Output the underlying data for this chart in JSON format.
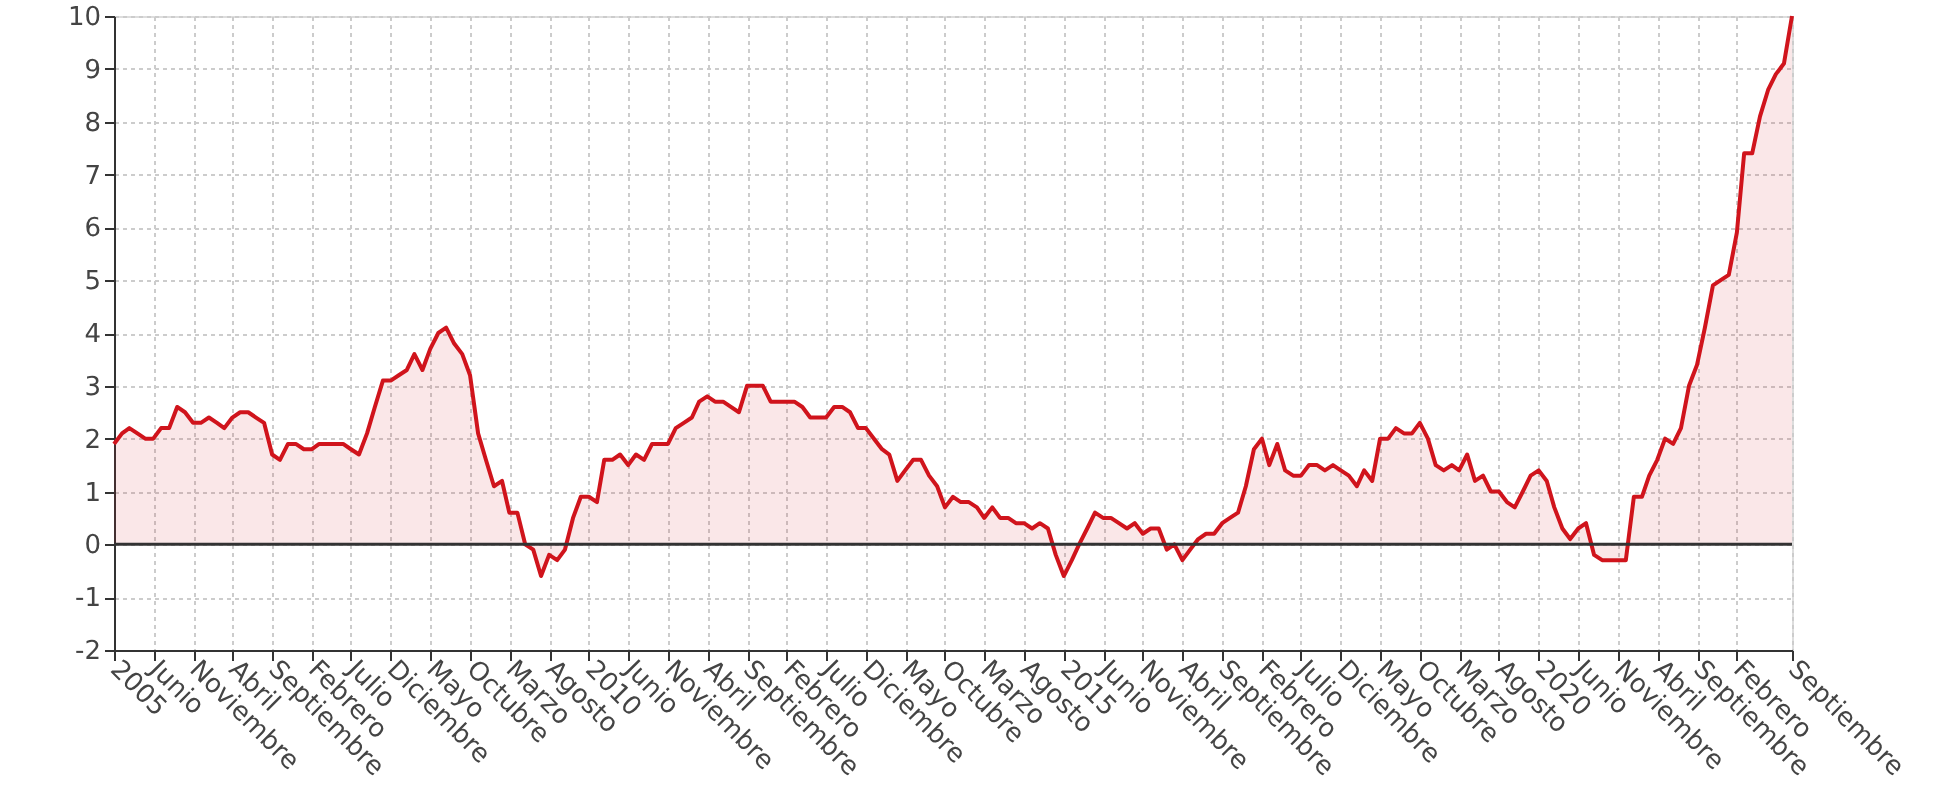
{
  "chart_data": {
    "type": "area",
    "x": [
      "2005-01",
      "2005-02",
      "2005-03",
      "2005-04",
      "2005-05",
      "2005-06",
      "2005-07",
      "2005-08",
      "2005-09",
      "2005-10",
      "2005-11",
      "2005-12",
      "2006-01",
      "2006-02",
      "2006-03",
      "2006-04",
      "2006-05",
      "2006-06",
      "2006-07",
      "2006-08",
      "2006-09",
      "2006-10",
      "2006-11",
      "2006-12",
      "2007-01",
      "2007-02",
      "2007-03",
      "2007-04",
      "2007-05",
      "2007-06",
      "2007-07",
      "2007-08",
      "2007-09",
      "2007-10",
      "2007-11",
      "2007-12",
      "2008-01",
      "2008-02",
      "2008-03",
      "2008-04",
      "2008-05",
      "2008-06",
      "2008-07",
      "2008-08",
      "2008-09",
      "2008-10",
      "2008-11",
      "2008-12",
      "2009-01",
      "2009-02",
      "2009-03",
      "2009-04",
      "2009-05",
      "2009-06",
      "2009-07",
      "2009-08",
      "2009-09",
      "2009-10",
      "2009-11",
      "2009-12",
      "2010-01",
      "2010-02",
      "2010-03",
      "2010-04",
      "2010-05",
      "2010-06",
      "2010-07",
      "2010-08",
      "2010-09",
      "2010-10",
      "2010-11",
      "2010-12",
      "2011-01",
      "2011-02",
      "2011-03",
      "2011-04",
      "2011-05",
      "2011-06",
      "2011-07",
      "2011-08",
      "2011-09",
      "2011-10",
      "2011-11",
      "2011-12",
      "2012-01",
      "2012-02",
      "2012-03",
      "2012-04",
      "2012-05",
      "2012-06",
      "2012-07",
      "2012-08",
      "2012-09",
      "2012-10",
      "2012-11",
      "2012-12",
      "2013-01",
      "2013-02",
      "2013-03",
      "2013-04",
      "2013-05",
      "2013-06",
      "2013-07",
      "2013-08",
      "2013-09",
      "2013-10",
      "2013-11",
      "2013-12",
      "2014-01",
      "2014-02",
      "2014-03",
      "2014-04",
      "2014-05",
      "2014-06",
      "2014-07",
      "2014-08",
      "2014-09",
      "2014-10",
      "2014-11",
      "2014-12",
      "2015-01",
      "2015-02",
      "2015-03",
      "2015-04",
      "2015-05",
      "2015-06",
      "2015-07",
      "2015-08",
      "2015-09",
      "2015-10",
      "2015-11",
      "2015-12",
      "2016-01",
      "2016-02",
      "2016-03",
      "2016-04",
      "2016-05",
      "2016-06",
      "2016-07",
      "2016-08",
      "2016-09",
      "2016-10",
      "2016-11",
      "2016-12",
      "2017-01",
      "2017-02",
      "2017-03",
      "2017-04",
      "2017-05",
      "2017-06",
      "2017-07",
      "2017-08",
      "2017-09",
      "2017-10",
      "2017-11",
      "2017-12",
      "2018-01",
      "2018-02",
      "2018-03",
      "2018-04",
      "2018-05",
      "2018-06",
      "2018-07",
      "2018-08",
      "2018-09",
      "2018-10",
      "2018-11",
      "2018-12",
      "2019-01",
      "2019-02",
      "2019-03",
      "2019-04",
      "2019-05",
      "2019-06",
      "2019-07",
      "2019-08",
      "2019-09",
      "2019-10",
      "2019-11",
      "2019-12",
      "2020-01",
      "2020-02",
      "2020-03",
      "2020-04",
      "2020-05",
      "2020-06",
      "2020-07",
      "2020-08",
      "2020-09",
      "2020-10",
      "2020-11",
      "2020-12",
      "2021-01",
      "2021-02",
      "2021-03",
      "2021-04",
      "2021-05",
      "2021-06",
      "2021-07",
      "2021-08",
      "2021-09",
      "2021-10",
      "2021-11",
      "2021-12",
      "2022-01",
      "2022-02",
      "2022-03",
      "2022-04",
      "2022-05",
      "2022-06",
      "2022-07",
      "2022-08",
      "2022-09"
    ],
    "series": [
      {
        "color": "#d0141c",
        "values": [
          1.9,
          2.1,
          2.2,
          2.1,
          2.0,
          2.0,
          2.2,
          2.2,
          2.6,
          2.5,
          2.3,
          2.3,
          2.4,
          2.3,
          2.2,
          2.4,
          2.5,
          2.5,
          2.4,
          2.3,
          1.7,
          1.6,
          1.9,
          1.9,
          1.8,
          1.8,
          1.9,
          1.9,
          1.9,
          1.9,
          1.8,
          1.7,
          2.1,
          2.6,
          3.1,
          3.1,
          3.2,
          3.3,
          3.6,
          3.3,
          3.7,
          4.0,
          4.1,
          3.8,
          3.6,
          3.2,
          2.1,
          1.6,
          1.1,
          1.2,
          0.6,
          0.6,
          0.0,
          -0.1,
          -0.6,
          -0.2,
          -0.3,
          -0.1,
          0.5,
          0.9,
          0.9,
          0.8,
          1.6,
          1.6,
          1.7,
          1.5,
          1.7,
          1.6,
          1.9,
          1.9,
          1.9,
          2.2,
          2.3,
          2.4,
          2.7,
          2.8,
          2.7,
          2.7,
          2.6,
          2.5,
          3.0,
          3.0,
          3.0,
          2.7,
          2.7,
          2.7,
          2.7,
          2.6,
          2.4,
          2.4,
          2.4,
          2.6,
          2.6,
          2.5,
          2.2,
          2.2,
          2.0,
          1.8,
          1.7,
          1.2,
          1.4,
          1.6,
          1.6,
          1.3,
          1.1,
          0.7,
          0.9,
          0.8,
          0.8,
          0.7,
          0.5,
          0.7,
          0.5,
          0.5,
          0.4,
          0.4,
          0.3,
          0.4,
          0.3,
          -0.2,
          -0.6,
          -0.3,
          0.0,
          0.3,
          0.6,
          0.5,
          0.5,
          0.4,
          0.3,
          0.4,
          0.2,
          0.3,
          0.3,
          -0.1,
          0.0,
          -0.3,
          -0.1,
          0.1,
          0.2,
          0.2,
          0.4,
          0.5,
          0.6,
          1.1,
          1.8,
          2.0,
          1.5,
          1.9,
          1.4,
          1.3,
          1.3,
          1.5,
          1.5,
          1.4,
          1.5,
          1.4,
          1.3,
          1.1,
          1.4,
          1.2,
          2.0,
          2.0,
          2.2,
          2.1,
          2.1,
          2.3,
          2.0,
          1.5,
          1.4,
          1.5,
          1.4,
          1.7,
          1.2,
          1.3,
          1.0,
          1.0,
          0.8,
          0.7,
          1.0,
          1.3,
          1.4,
          1.2,
          0.7,
          0.3,
          0.1,
          0.3,
          0.4,
          -0.2,
          -0.3,
          -0.3,
          -0.3,
          -0.3,
          0.9,
          0.9,
          1.3,
          1.6,
          2.0,
          1.9,
          2.2,
          3.0,
          3.4,
          4.1,
          4.9,
          5.0,
          5.1,
          5.9,
          7.4,
          7.4,
          8.1,
          8.6,
          8.9,
          9.1,
          10.0
        ]
      }
    ],
    "xlim": [
      "2005-01",
      "2022-09"
    ],
    "xticks": [
      {
        "value": "2005-01",
        "label": "2005"
      },
      {
        "value": "2005-06",
        "label": "Junio"
      },
      {
        "value": "2005-11",
        "label": "Noviembre"
      },
      {
        "value": "2006-04",
        "label": "Abril"
      },
      {
        "value": "2006-09",
        "label": "Septiembre"
      },
      {
        "value": "2007-02",
        "label": "Febrero"
      },
      {
        "value": "2007-07",
        "label": "Julio"
      },
      {
        "value": "2007-12",
        "label": "Diciembre"
      },
      {
        "value": "2008-05",
        "label": "Mayo"
      },
      {
        "value": "2008-10",
        "label": "Octubre"
      },
      {
        "value": "2009-03",
        "label": "Marzo"
      },
      {
        "value": "2009-08",
        "label": "Agosto"
      },
      {
        "value": "2010-01",
        "label": "2010"
      },
      {
        "value": "2010-06",
        "label": "Junio"
      },
      {
        "value": "2010-11",
        "label": "Noviembre"
      },
      {
        "value": "2011-04",
        "label": "Abril"
      },
      {
        "value": "2011-09",
        "label": "Septiembre"
      },
      {
        "value": "2012-02",
        "label": "Febrero"
      },
      {
        "value": "2012-07",
        "label": "Julio"
      },
      {
        "value": "2012-12",
        "label": "Diciembre"
      },
      {
        "value": "2013-05",
        "label": "Mayo"
      },
      {
        "value": "2013-10",
        "label": "Octubre"
      },
      {
        "value": "2014-03",
        "label": "Marzo"
      },
      {
        "value": "2014-08",
        "label": "Agosto"
      },
      {
        "value": "2015-01",
        "label": "2015"
      },
      {
        "value": "2015-06",
        "label": "Junio"
      },
      {
        "value": "2015-11",
        "label": "Noviembre"
      },
      {
        "value": "2016-04",
        "label": "Abril"
      },
      {
        "value": "2016-09",
        "label": "Septiembre"
      },
      {
        "value": "2017-02",
        "label": "Febrero"
      },
      {
        "value": "2017-07",
        "label": "Julio"
      },
      {
        "value": "2017-12",
        "label": "Diciembre"
      },
      {
        "value": "2018-05",
        "label": "Mayo"
      },
      {
        "value": "2018-10",
        "label": "Octubre"
      },
      {
        "value": "2019-03",
        "label": "Marzo"
      },
      {
        "value": "2019-08",
        "label": "Agosto"
      },
      {
        "value": "2020-01",
        "label": "2020"
      },
      {
        "value": "2020-06",
        "label": "Junio"
      },
      {
        "value": "2020-11",
        "label": "Noviembre"
      },
      {
        "value": "2021-04",
        "label": "Abril"
      },
      {
        "value": "2021-09",
        "label": "Septiembre"
      },
      {
        "value": "2022-02",
        "label": "Febrero"
      },
      {
        "value": "2022-09",
        "label": "Septiembre"
      }
    ],
    "ylim": [
      -2,
      10
    ],
    "yticks": [
      -2,
      -1,
      0,
      1,
      2,
      3,
      4,
      5,
      6,
      7,
      8,
      9,
      10
    ],
    "ref_lines": [
      {
        "axis": "y",
        "value": 0,
        "color": "#333333"
      }
    ],
    "grid": true,
    "marker": "none",
    "line_style": "solid"
  }
}
